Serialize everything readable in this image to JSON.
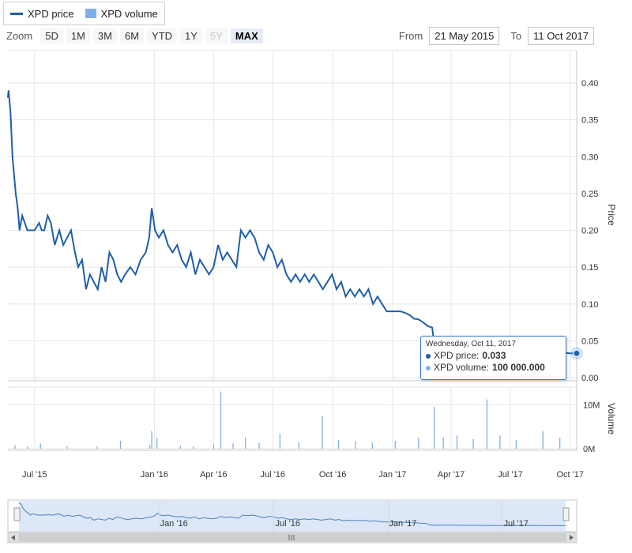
{
  "legend": {
    "price_label": "XPD price",
    "volume_label": "XPD volume"
  },
  "zoom": {
    "label": "Zoom",
    "buttons": [
      {
        "label": "5D",
        "state": "normal"
      },
      {
        "label": "1M",
        "state": "normal"
      },
      {
        "label": "3M",
        "state": "normal"
      },
      {
        "label": "6M",
        "state": "normal"
      },
      {
        "label": "YTD",
        "state": "normal"
      },
      {
        "label": "1Y",
        "state": "normal"
      },
      {
        "label": "5Y",
        "state": "disabled"
      },
      {
        "label": "MAX",
        "state": "active"
      }
    ]
  },
  "range": {
    "from_label": "From",
    "from_value": "21 May 2015",
    "to_label": "To",
    "to_value": "11 Oct 2017"
  },
  "tooltip": {
    "date": "Wednesday, Oct 11, 2017",
    "price_label": "XPD price:",
    "price_value": "0.033",
    "volume_label": "XPD volume:",
    "volume_value": "100 000.000"
  },
  "colors": {
    "price_line": "#1f5fa8",
    "volume_bar": "#7fb1e6",
    "navigator_fill": "#dce8f7",
    "tooltip_border": "#3b7bd1"
  },
  "chart_data": {
    "type": "line",
    "x_start": "2015-05-21",
    "x_end": "2017-10-11",
    "price": {
      "name": "XPD price",
      "ylabel": "Price",
      "ylim": [
        0,
        0.4
      ],
      "yticks": [
        "0.00",
        "0.05",
        "0.10",
        "0.15",
        "0.20",
        "0.25",
        "0.30",
        "0.35",
        "0.40"
      ],
      "points": [
        [
          "2015-05-21",
          0.38
        ],
        [
          "2015-05-22",
          0.39
        ],
        [
          "2015-05-25",
          0.36
        ],
        [
          "2015-05-28",
          0.3
        ],
        [
          "2015-05-30",
          0.28
        ],
        [
          "2015-06-02",
          0.25
        ],
        [
          "2015-06-05",
          0.23
        ],
        [
          "2015-06-08",
          0.2
        ],
        [
          "2015-06-12",
          0.22
        ],
        [
          "2015-06-16",
          0.21
        ],
        [
          "2015-06-20",
          0.2
        ],
        [
          "2015-06-25",
          0.2
        ],
        [
          "2015-07-01",
          0.2
        ],
        [
          "2015-07-08",
          0.21
        ],
        [
          "2015-07-12",
          0.2
        ],
        [
          "2015-07-16",
          0.2
        ],
        [
          "2015-07-21",
          0.22
        ],
        [
          "2015-07-26",
          0.21
        ],
        [
          "2015-08-01",
          0.18
        ],
        [
          "2015-08-08",
          0.2
        ],
        [
          "2015-08-14",
          0.18
        ],
        [
          "2015-08-20",
          0.19
        ],
        [
          "2015-08-26",
          0.2
        ],
        [
          "2015-09-01",
          0.17
        ],
        [
          "2015-09-06",
          0.15
        ],
        [
          "2015-09-12",
          0.16
        ],
        [
          "2015-09-18",
          0.12
        ],
        [
          "2015-09-24",
          0.14
        ],
        [
          "2015-09-30",
          0.13
        ],
        [
          "2015-10-06",
          0.12
        ],
        [
          "2015-10-12",
          0.15
        ],
        [
          "2015-10-18",
          0.13
        ],
        [
          "2015-10-24",
          0.17
        ],
        [
          "2015-10-30",
          0.16
        ],
        [
          "2015-11-05",
          0.14
        ],
        [
          "2015-11-11",
          0.13
        ],
        [
          "2015-11-17",
          0.14
        ],
        [
          "2015-11-25",
          0.15
        ],
        [
          "2015-12-03",
          0.14
        ],
        [
          "2015-12-11",
          0.16
        ],
        [
          "2015-12-19",
          0.17
        ],
        [
          "2015-12-24",
          0.19
        ],
        [
          "2015-12-28",
          0.23
        ],
        [
          "2016-01-02",
          0.2
        ],
        [
          "2016-01-08",
          0.19
        ],
        [
          "2016-01-15",
          0.2
        ],
        [
          "2016-01-22",
          0.18
        ],
        [
          "2016-01-29",
          0.17
        ],
        [
          "2016-02-05",
          0.18
        ],
        [
          "2016-02-12",
          0.16
        ],
        [
          "2016-02-19",
          0.15
        ],
        [
          "2016-02-26",
          0.17
        ],
        [
          "2016-03-04",
          0.14
        ],
        [
          "2016-03-11",
          0.16
        ],
        [
          "2016-03-18",
          0.15
        ],
        [
          "2016-03-25",
          0.14
        ],
        [
          "2016-04-01",
          0.15
        ],
        [
          "2016-04-08",
          0.18
        ],
        [
          "2016-04-15",
          0.16
        ],
        [
          "2016-04-22",
          0.17
        ],
        [
          "2016-04-29",
          0.16
        ],
        [
          "2016-05-06",
          0.15
        ],
        [
          "2016-05-13",
          0.2
        ],
        [
          "2016-05-20",
          0.19
        ],
        [
          "2016-05-27",
          0.2
        ],
        [
          "2016-06-03",
          0.19
        ],
        [
          "2016-06-10",
          0.17
        ],
        [
          "2016-06-17",
          0.16
        ],
        [
          "2016-06-24",
          0.18
        ],
        [
          "2016-07-01",
          0.17
        ],
        [
          "2016-07-08",
          0.15
        ],
        [
          "2016-07-15",
          0.16
        ],
        [
          "2016-07-22",
          0.14
        ],
        [
          "2016-07-29",
          0.13
        ],
        [
          "2016-08-05",
          0.14
        ],
        [
          "2016-08-12",
          0.13
        ],
        [
          "2016-08-19",
          0.14
        ],
        [
          "2016-08-26",
          0.13
        ],
        [
          "2016-09-02",
          0.14
        ],
        [
          "2016-09-09",
          0.13
        ],
        [
          "2016-09-16",
          0.12
        ],
        [
          "2016-09-23",
          0.13
        ],
        [
          "2016-09-30",
          0.14
        ],
        [
          "2016-10-07",
          0.12
        ],
        [
          "2016-10-14",
          0.13
        ],
        [
          "2016-10-21",
          0.11
        ],
        [
          "2016-10-28",
          0.12
        ],
        [
          "2016-11-04",
          0.11
        ],
        [
          "2016-11-11",
          0.12
        ],
        [
          "2016-11-18",
          0.11
        ],
        [
          "2016-11-25",
          0.12
        ],
        [
          "2016-12-02",
          0.1
        ],
        [
          "2016-12-09",
          0.11
        ],
        [
          "2016-12-16",
          0.1
        ],
        [
          "2016-12-23",
          0.09
        ],
        [
          "2016-12-30",
          0.09
        ],
        [
          "2017-01-06",
          0.09
        ],
        [
          "2017-01-13",
          0.09
        ],
        [
          "2017-01-20",
          0.088
        ],
        [
          "2017-01-27",
          0.085
        ],
        [
          "2017-02-03",
          0.08
        ],
        [
          "2017-02-10",
          0.079
        ],
        [
          "2017-02-17",
          0.075
        ],
        [
          "2017-02-24",
          0.07
        ],
        [
          "2017-03-03",
          0.068
        ],
        [
          "2017-03-06",
          0.045
        ],
        [
          "2017-03-13",
          0.04
        ],
        [
          "2017-03-20",
          0.042
        ],
        [
          "2017-03-27",
          0.04
        ],
        [
          "2017-04-03",
          0.041
        ],
        [
          "2017-04-17",
          0.04
        ],
        [
          "2017-05-01",
          0.038
        ],
        [
          "2017-05-15",
          0.037
        ],
        [
          "2017-06-01",
          0.036
        ],
        [
          "2017-06-15",
          0.036
        ],
        [
          "2017-07-01",
          0.035
        ],
        [
          "2017-07-15",
          0.034
        ],
        [
          "2017-08-01",
          0.034
        ],
        [
          "2017-08-15",
          0.038
        ],
        [
          "2017-09-01",
          0.035
        ],
        [
          "2017-09-15",
          0.034
        ],
        [
          "2017-10-01",
          0.033
        ],
        [
          "2017-10-11",
          0.033
        ]
      ]
    },
    "volume": {
      "name": "XPD volume",
      "ylabel": "Volume",
      "yticks": [
        "0M",
        "10M"
      ],
      "ylim": [
        0,
        14000000
      ],
      "points": [
        [
          "2015-06-01",
          800000
        ],
        [
          "2015-06-20",
          500000
        ],
        [
          "2015-07-10",
          1200000
        ],
        [
          "2015-08-20",
          600000
        ],
        [
          "2015-10-05",
          500000
        ],
        [
          "2015-11-10",
          1800000
        ],
        [
          "2015-12-25",
          900000
        ],
        [
          "2015-12-28",
          4000000
        ],
        [
          "2016-01-05",
          2500000
        ],
        [
          "2016-02-10",
          700000
        ],
        [
          "2016-03-01",
          500000
        ],
        [
          "2016-04-01",
          1000000
        ],
        [
          "2016-04-12",
          13000000
        ],
        [
          "2016-05-01",
          1200000
        ],
        [
          "2016-05-20",
          2600000
        ],
        [
          "2016-06-10",
          1300000
        ],
        [
          "2016-07-12",
          3500000
        ],
        [
          "2016-08-10",
          1500000
        ],
        [
          "2016-09-15",
          7500000
        ],
        [
          "2016-10-10",
          2000000
        ],
        [
          "2016-11-05",
          1700000
        ],
        [
          "2016-12-01",
          1400000
        ],
        [
          "2017-01-05",
          1800000
        ],
        [
          "2017-02-10",
          2500000
        ],
        [
          "2017-03-06",
          9500000
        ],
        [
          "2017-03-20",
          2600000
        ],
        [
          "2017-04-10",
          3000000
        ],
        [
          "2017-05-05",
          2200000
        ],
        [
          "2017-05-26",
          11200000
        ],
        [
          "2017-06-15",
          3000000
        ],
        [
          "2017-07-10",
          2000000
        ],
        [
          "2017-08-20",
          4000000
        ],
        [
          "2017-09-15",
          2500000
        ],
        [
          "2017-10-11",
          100000
        ]
      ]
    },
    "x_ticks": [
      {
        "date": "2015-07-01",
        "label": "Jul '15"
      },
      {
        "date": "2016-01-01",
        "label": "Jan '16"
      },
      {
        "date": "2016-04-01",
        "label": "Apr '16"
      },
      {
        "date": "2016-07-01",
        "label": "Jul '16"
      },
      {
        "date": "2016-10-01",
        "label": "Oct '16"
      },
      {
        "date": "2017-01-01",
        "label": "Jan '17"
      },
      {
        "date": "2017-04-01",
        "label": "Apr '17"
      },
      {
        "date": "2017-07-01",
        "label": "Jul '17"
      },
      {
        "date": "2017-10-01",
        "label": "Oct '17"
      }
    ],
    "navigator_ticks": [
      {
        "date": "2016-01-01",
        "label": "Jan '16"
      },
      {
        "date": "2016-07-01",
        "label": "Jul '16"
      },
      {
        "date": "2017-01-01",
        "label": "Jan '17"
      },
      {
        "date": "2017-07-01",
        "label": "Jul '17"
      }
    ],
    "highlighted_point": {
      "date": "2017-10-11",
      "price": 0.033
    }
  }
}
